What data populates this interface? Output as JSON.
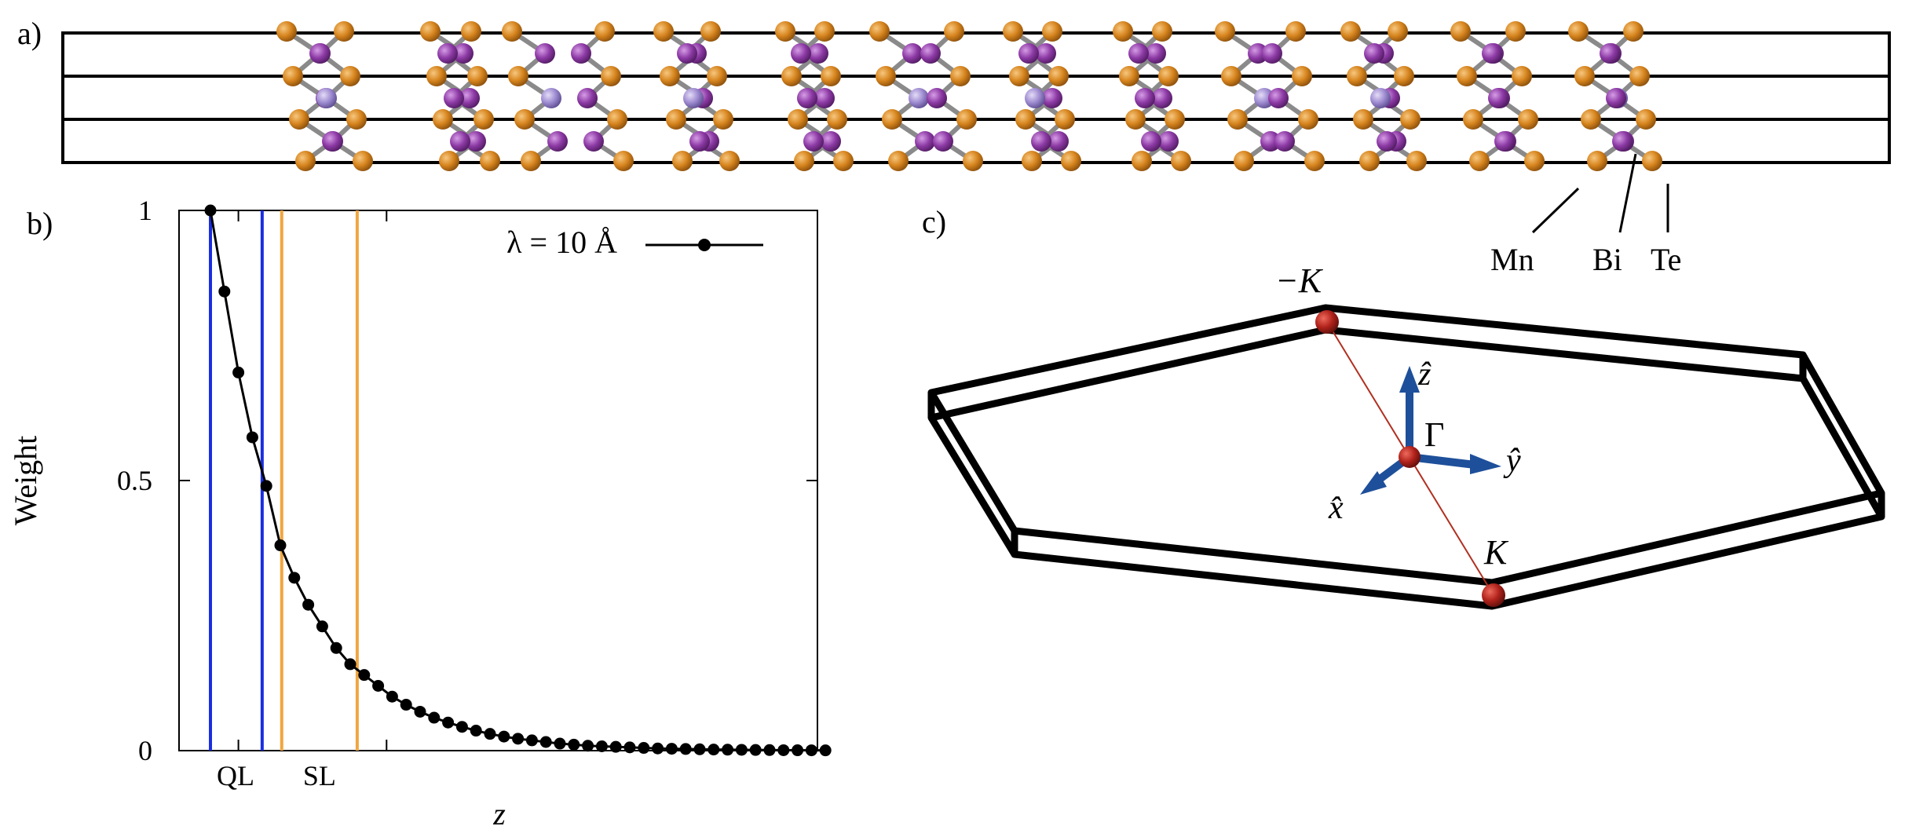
{
  "panels": {
    "a": {
      "label": "a)",
      "atom_labels": [
        "Mn",
        "Bi",
        "Te"
      ]
    },
    "b": {
      "label": "b)",
      "ylabel": "Weight",
      "xlabel": "z",
      "legend": "λ = 10 Å",
      "yticks": [
        "0",
        "0.5",
        "1"
      ],
      "xticks": [
        "QL",
        "SL"
      ]
    },
    "c": {
      "label": "c)",
      "points": [
        "−K",
        "Γ",
        "K"
      ],
      "axes": [
        "ẑ",
        "ŷ",
        "x̂"
      ]
    }
  },
  "colors": {
    "Mn": "#9d8ad0",
    "Bi": "#8d3aa5",
    "Te": "#d6841d",
    "bond": "#8a8a8a",
    "blue_line": "#1a2ee0",
    "orange_line": "#f0a640",
    "axis_arrow": "#1e4f9a",
    "bz_point": "#b0221b",
    "kline": "#b03020"
  },
  "chart_data": {
    "type": "line",
    "title": "",
    "xlabel": "z",
    "ylabel": "Weight",
    "ylim": [
      0,
      1
    ],
    "grid": false,
    "legend_position": "top-right",
    "series": [
      {
        "name": "λ = 10 Å",
        "x": [
          0,
          1,
          2,
          3,
          4,
          5,
          6,
          7,
          8,
          9,
          10,
          11,
          12,
          13,
          14,
          15,
          16,
          17,
          18,
          19,
          20,
          21,
          22,
          23,
          24,
          25,
          26,
          27,
          28,
          29,
          30,
          31,
          32,
          33,
          34,
          35,
          36,
          37,
          38,
          39,
          40,
          41,
          42,
          43,
          44
        ],
        "values": [
          1.0,
          0.85,
          0.7,
          0.58,
          0.49,
          0.38,
          0.32,
          0.27,
          0.23,
          0.19,
          0.16,
          0.14,
          0.12,
          0.1,
          0.085,
          0.072,
          0.061,
          0.052,
          0.044,
          0.037,
          0.031,
          0.026,
          0.022,
          0.019,
          0.016,
          0.013,
          0.011,
          0.009,
          0.008,
          0.007,
          0.006,
          0.005,
          0.004,
          0.0035,
          0.003,
          0.0025,
          0.002,
          0.0018,
          0.0015,
          0.0012,
          0.001,
          0.0008,
          0.0007,
          0.0006,
          0.0005
        ]
      }
    ],
    "vertical_lines": {
      "blue": [
        0,
        3.7
      ],
      "orange": [
        5.1,
        10.5
      ]
    },
    "xtick_labels": [
      {
        "label": "QL",
        "x": 1.8
      },
      {
        "label": "SL",
        "x": 7.8
      }
    ]
  }
}
